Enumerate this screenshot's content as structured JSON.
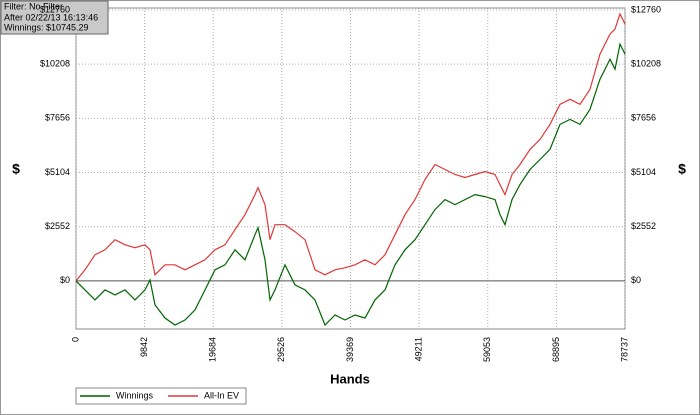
{
  "chart_data": {
    "type": "line",
    "info": [
      "Filter: No Filter",
      "After 02/22/13 16:13:46",
      "Winnings: $10745.29"
    ],
    "x_label": "Hands",
    "y_label": "$",
    "x": [
      0,
      1291,
      2725,
      4159,
      5593,
      7028,
      8462,
      9896,
      10613,
      11330,
      12764,
      14199,
      15633,
      17067,
      18501,
      19935,
      21369,
      22804,
      24238,
      25672,
      26102,
      27106,
      27823,
      28541,
      29975,
      31409,
      32843,
      34277,
      35711,
      37146,
      38580,
      40014,
      41448,
      42882,
      44317,
      45751,
      47185,
      48619,
      50053,
      51488,
      52922,
      54356,
      55790,
      57224,
      58659,
      60093,
      60810,
      61527,
      62531,
      63678,
      65112,
      66547,
      67981,
      69415,
      70849,
      72284,
      73718,
      75152,
      76586,
      77303,
      78020,
      78737
    ],
    "series": [
      {
        "name": "Winnings",
        "color": "#006400",
        "values": [
          0,
          -425,
          -898,
          -425,
          -662,
          -425,
          -898,
          -425,
          47,
          -1134,
          -1749,
          -2079,
          -1843,
          -1370,
          -425,
          520,
          756,
          1465,
          993,
          2174,
          2505,
          993,
          -898,
          -425,
          756,
          -189,
          -425,
          -898,
          -2079,
          -1607,
          -1843,
          -1607,
          -1749,
          -898,
          -425,
          756,
          1465,
          1938,
          2646,
          3355,
          3828,
          3592,
          3828,
          4064,
          3970,
          3828,
          3119,
          2646,
          3828,
          4537,
          5246,
          5718,
          6191,
          7373,
          7609,
          7373,
          8081,
          9499,
          10444,
          9971,
          11153,
          10681
        ]
      },
      {
        "name": "All-In EV",
        "color": "#e03838",
        "values": [
          0,
          520,
          1229,
          1465,
          1938,
          1701,
          1560,
          1701,
          1465,
          284,
          756,
          756,
          520,
          756,
          993,
          1465,
          1701,
          2410,
          3119,
          4064,
          4395,
          3592,
          1938,
          2646,
          2646,
          2316,
          1938,
          520,
          284,
          520,
          614,
          756,
          993,
          756,
          1229,
          2174,
          3119,
          3828,
          4773,
          5482,
          5246,
          5010,
          4868,
          5010,
          5151,
          5010,
          4537,
          4064,
          5010,
          5482,
          6191,
          6664,
          7373,
          8318,
          8554,
          8318,
          9027,
          10681,
          11626,
          11862,
          12571,
          12098
        ]
      }
    ],
    "xlim": [
      0,
      78737
    ],
    "xticks": [
      0,
      9842,
      19684,
      29526,
      39369,
      49211,
      59053,
      68895,
      78737
    ],
    "ylim": [
      -2268,
      12855
    ],
    "yticks": [
      {
        "value": 0,
        "label": "$0"
      },
      {
        "value": 2552,
        "label": "$2552"
      },
      {
        "value": 5104,
        "label": "$5104"
      },
      {
        "value": 7656,
        "label": "$7656"
      },
      {
        "value": 10208,
        "label": "$10208"
      },
      {
        "value": 12760,
        "label": "$12760"
      }
    ],
    "grid": true
  }
}
